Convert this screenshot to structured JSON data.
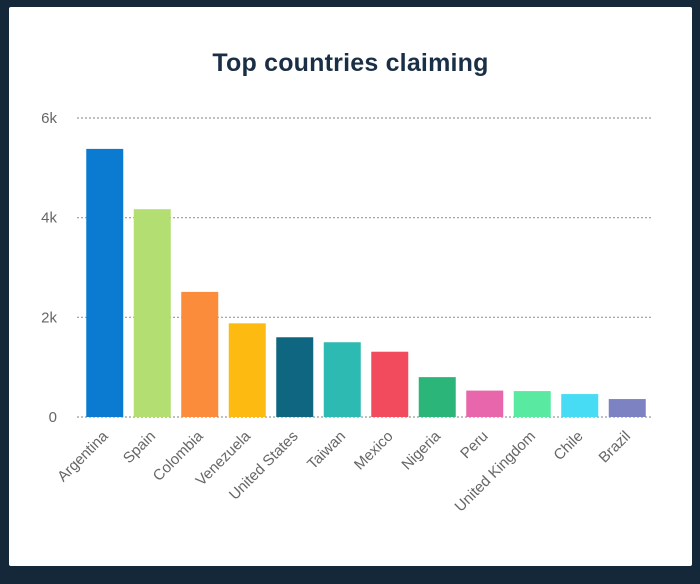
{
  "colors": {
    "background": "#15283a",
    "card": "#ffffff",
    "title": "#1a2f45",
    "grid": "#9a9a9a",
    "axis_text": "#666666"
  },
  "chart_data": {
    "type": "bar",
    "title": "Top countries claiming",
    "xlabel": "",
    "ylabel": "",
    "ylim": [
      0,
      6000
    ],
    "yticks": [
      0,
      2000,
      4000,
      6000
    ],
    "ytick_labels": [
      "0",
      "2k",
      "4k",
      "6k"
    ],
    "grid": true,
    "legend": "none",
    "categories": [
      "Argentina",
      "Spain",
      "Colombia",
      "Venezuela",
      "United States",
      "Taiwan",
      "Mexico",
      "Nigeria",
      "Peru",
      "United Kingdom",
      "Chile",
      "Brazil"
    ],
    "values": [
      5380,
      4170,
      2510,
      1880,
      1600,
      1500,
      1310,
      800,
      530,
      520,
      460,
      360
    ],
    "bar_colors": [
      "#0a7bd0",
      "#b3df72",
      "#fa8c3b",
      "#fdbb12",
      "#0f6680",
      "#2cbab2",
      "#f24b5e",
      "#2cb579",
      "#e867ac",
      "#5ae9a0",
      "#47dcf4",
      "#7c82c2"
    ]
  }
}
